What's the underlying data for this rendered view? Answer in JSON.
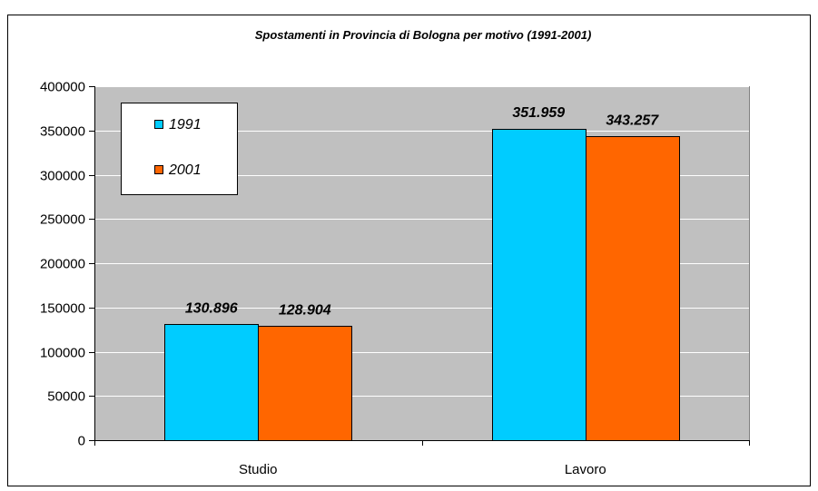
{
  "chart_data": {
    "type": "bar",
    "title": "Spostamenti in Provincia di Bologna per motivo (1991-2001)",
    "categories": [
      "Studio",
      "Lavoro"
    ],
    "series": [
      {
        "name": "1991",
        "values": [
          130896,
          351959
        ],
        "labels": [
          "130.896",
          "351.959"
        ],
        "color": "#00ccff"
      },
      {
        "name": "2001",
        "values": [
          128904,
          343257
        ],
        "labels": [
          "128.904",
          "343.257"
        ],
        "color": "#ff6600"
      }
    ],
    "ylim": [
      0,
      400000
    ],
    "yticks": [
      "0",
      "50000",
      "100000",
      "150000",
      "200000",
      "250000",
      "300000",
      "350000",
      "400000"
    ],
    "xlabel": "",
    "ylabel": "",
    "grid": true,
    "legend_position": "top-left",
    "plot_background": "#c0c0c0"
  }
}
